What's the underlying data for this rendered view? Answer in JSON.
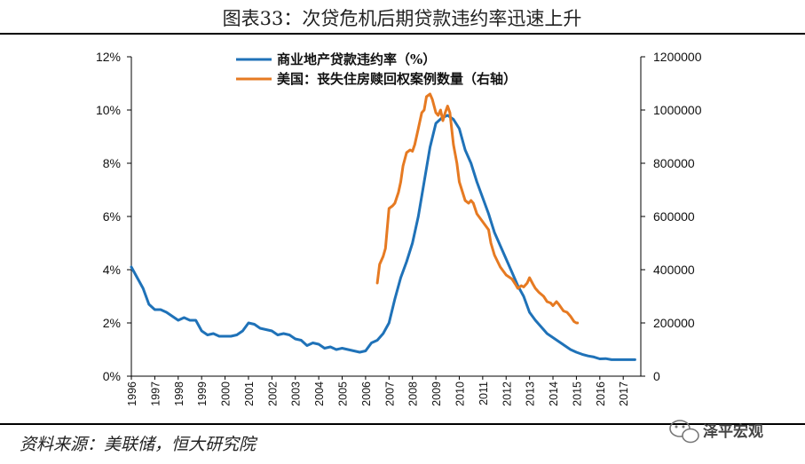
{
  "title": "图表33：次贷危机后期贷款违约率迅速上升",
  "source": "资料来源：美联储，恒大研究院",
  "watermark": "泽平宏观",
  "colors": {
    "series1": "#1F72B8",
    "series2": "#E67A22",
    "rule": "#000000"
  },
  "chart_data": {
    "type": "line",
    "x_range": [
      1996,
      2017.75
    ],
    "x_ticks": [
      "1996",
      "1997",
      "1998",
      "1999",
      "2000",
      "2001",
      "2002",
      "2003",
      "2004",
      "2005",
      "2006",
      "2007",
      "2008",
      "2009",
      "2010",
      "2011",
      "2012",
      "2013",
      "2014",
      "2015",
      "2016",
      "2017"
    ],
    "y_left": {
      "range": [
        0,
        12
      ],
      "ticks": [
        "0%",
        "2%",
        "4%",
        "6%",
        "8%",
        "10%",
        "12%"
      ]
    },
    "y_right": {
      "range": [
        0,
        1200000
      ],
      "ticks": [
        "0",
        "200000",
        "400000",
        "600000",
        "800000",
        "1000000",
        "1200000"
      ]
    },
    "series": [
      {
        "name": "商业地产贷款违约率（%）",
        "axis": "left",
        "points": [
          [
            1996.0,
            4.1
          ],
          [
            1996.25,
            3.7
          ],
          [
            1996.5,
            3.3
          ],
          [
            1996.75,
            2.7
          ],
          [
            1997.0,
            2.5
          ],
          [
            1997.25,
            2.5
          ],
          [
            1997.5,
            2.4
          ],
          [
            1997.75,
            2.25
          ],
          [
            1998.0,
            2.1
          ],
          [
            1998.25,
            2.2
          ],
          [
            1998.5,
            2.1
          ],
          [
            1998.75,
            2.1
          ],
          [
            1999.0,
            1.7
          ],
          [
            1999.25,
            1.55
          ],
          [
            1999.5,
            1.6
          ],
          [
            1999.75,
            1.5
          ],
          [
            2000.0,
            1.5
          ],
          [
            2000.25,
            1.5
          ],
          [
            2000.5,
            1.55
          ],
          [
            2000.75,
            1.7
          ],
          [
            2001.0,
            2.0
          ],
          [
            2001.25,
            1.95
          ],
          [
            2001.5,
            1.8
          ],
          [
            2001.75,
            1.75
          ],
          [
            2002.0,
            1.7
          ],
          [
            2002.25,
            1.55
          ],
          [
            2002.5,
            1.6
          ],
          [
            2002.75,
            1.55
          ],
          [
            2003.0,
            1.4
          ],
          [
            2003.25,
            1.35
          ],
          [
            2003.5,
            1.15
          ],
          [
            2003.75,
            1.25
          ],
          [
            2004.0,
            1.2
          ],
          [
            2004.25,
            1.05
          ],
          [
            2004.5,
            1.1
          ],
          [
            2004.75,
            1.0
          ],
          [
            2005.0,
            1.05
          ],
          [
            2005.25,
            1.0
          ],
          [
            2005.5,
            0.95
          ],
          [
            2005.75,
            0.9
          ],
          [
            2006.0,
            0.95
          ],
          [
            2006.25,
            1.25
          ],
          [
            2006.5,
            1.35
          ],
          [
            2006.75,
            1.6
          ],
          [
            2007.0,
            2.0
          ],
          [
            2007.25,
            2.9
          ],
          [
            2007.5,
            3.7
          ],
          [
            2007.75,
            4.3
          ],
          [
            2008.0,
            5.0
          ],
          [
            2008.25,
            6.0
          ],
          [
            2008.5,
            7.3
          ],
          [
            2008.75,
            8.6
          ],
          [
            2009.0,
            9.5
          ],
          [
            2009.25,
            9.7
          ],
          [
            2009.5,
            9.8
          ],
          [
            2009.75,
            9.65
          ],
          [
            2010.0,
            9.3
          ],
          [
            2010.25,
            8.5
          ],
          [
            2010.5,
            8.0
          ],
          [
            2010.75,
            7.3
          ],
          [
            2011.0,
            6.7
          ],
          [
            2011.25,
            6.1
          ],
          [
            2011.5,
            5.4
          ],
          [
            2011.75,
            4.9
          ],
          [
            2012.0,
            4.4
          ],
          [
            2012.25,
            3.9
          ],
          [
            2012.5,
            3.4
          ],
          [
            2012.75,
            3.0
          ],
          [
            2013.0,
            2.4
          ],
          [
            2013.25,
            2.1
          ],
          [
            2013.5,
            1.85
          ],
          [
            2013.75,
            1.6
          ],
          [
            2014.0,
            1.45
          ],
          [
            2014.25,
            1.3
          ],
          [
            2014.5,
            1.15
          ],
          [
            2014.75,
            1.0
          ],
          [
            2015.0,
            0.9
          ],
          [
            2015.25,
            0.82
          ],
          [
            2015.5,
            0.76
          ],
          [
            2015.75,
            0.72
          ],
          [
            2016.0,
            0.65
          ],
          [
            2016.25,
            0.66
          ],
          [
            2016.5,
            0.62
          ],
          [
            2016.75,
            0.62
          ],
          [
            2017.0,
            0.62
          ],
          [
            2017.25,
            0.62
          ],
          [
            2017.5,
            0.62
          ]
        ]
      },
      {
        "name": "美国：丧失住房赎回权案例数量（右轴）",
        "axis": "right",
        "points": [
          [
            2006.5,
            350000
          ],
          [
            2006.6,
            420000
          ],
          [
            2006.75,
            450000
          ],
          [
            2006.85,
            480000
          ],
          [
            2007.0,
            630000
          ],
          [
            2007.15,
            640000
          ],
          [
            2007.25,
            650000
          ],
          [
            2007.4,
            690000
          ],
          [
            2007.5,
            730000
          ],
          [
            2007.6,
            790000
          ],
          [
            2007.75,
            840000
          ],
          [
            2007.9,
            850000
          ],
          [
            2008.0,
            845000
          ],
          [
            2008.1,
            870000
          ],
          [
            2008.25,
            930000
          ],
          [
            2008.4,
            990000
          ],
          [
            2008.5,
            1000000
          ],
          [
            2008.6,
            1050000
          ],
          [
            2008.75,
            1060000
          ],
          [
            2008.85,
            1040000
          ],
          [
            2009.0,
            990000
          ],
          [
            2009.1,
            980000
          ],
          [
            2009.2,
            1000000
          ],
          [
            2009.3,
            960000
          ],
          [
            2009.4,
            990000
          ],
          [
            2009.5,
            1015000
          ],
          [
            2009.6,
            990000
          ],
          [
            2009.75,
            870000
          ],
          [
            2009.9,
            800000
          ],
          [
            2010.0,
            730000
          ],
          [
            2010.25,
            660000
          ],
          [
            2010.4,
            650000
          ],
          [
            2010.5,
            660000
          ],
          [
            2010.6,
            650000
          ],
          [
            2010.75,
            610000
          ],
          [
            2011.0,
            580000
          ],
          [
            2011.25,
            550000
          ],
          [
            2011.35,
            500000
          ],
          [
            2011.5,
            455000
          ],
          [
            2011.75,
            410000
          ],
          [
            2012.0,
            380000
          ],
          [
            2012.25,
            365000
          ],
          [
            2012.4,
            345000
          ],
          [
            2012.5,
            330000
          ],
          [
            2012.65,
            340000
          ],
          [
            2012.75,
            335000
          ],
          [
            2012.9,
            350000
          ],
          [
            2013.0,
            370000
          ],
          [
            2013.15,
            345000
          ],
          [
            2013.25,
            330000
          ],
          [
            2013.4,
            315000
          ],
          [
            2013.6,
            300000
          ],
          [
            2013.75,
            280000
          ],
          [
            2013.9,
            275000
          ],
          [
            2014.0,
            265000
          ],
          [
            2014.15,
            280000
          ],
          [
            2014.25,
            270000
          ],
          [
            2014.45,
            245000
          ],
          [
            2014.6,
            240000
          ],
          [
            2014.75,
            225000
          ],
          [
            2014.9,
            205000
          ],
          [
            2015.0,
            200000
          ],
          [
            2015.05,
            200000
          ]
        ]
      }
    ]
  }
}
